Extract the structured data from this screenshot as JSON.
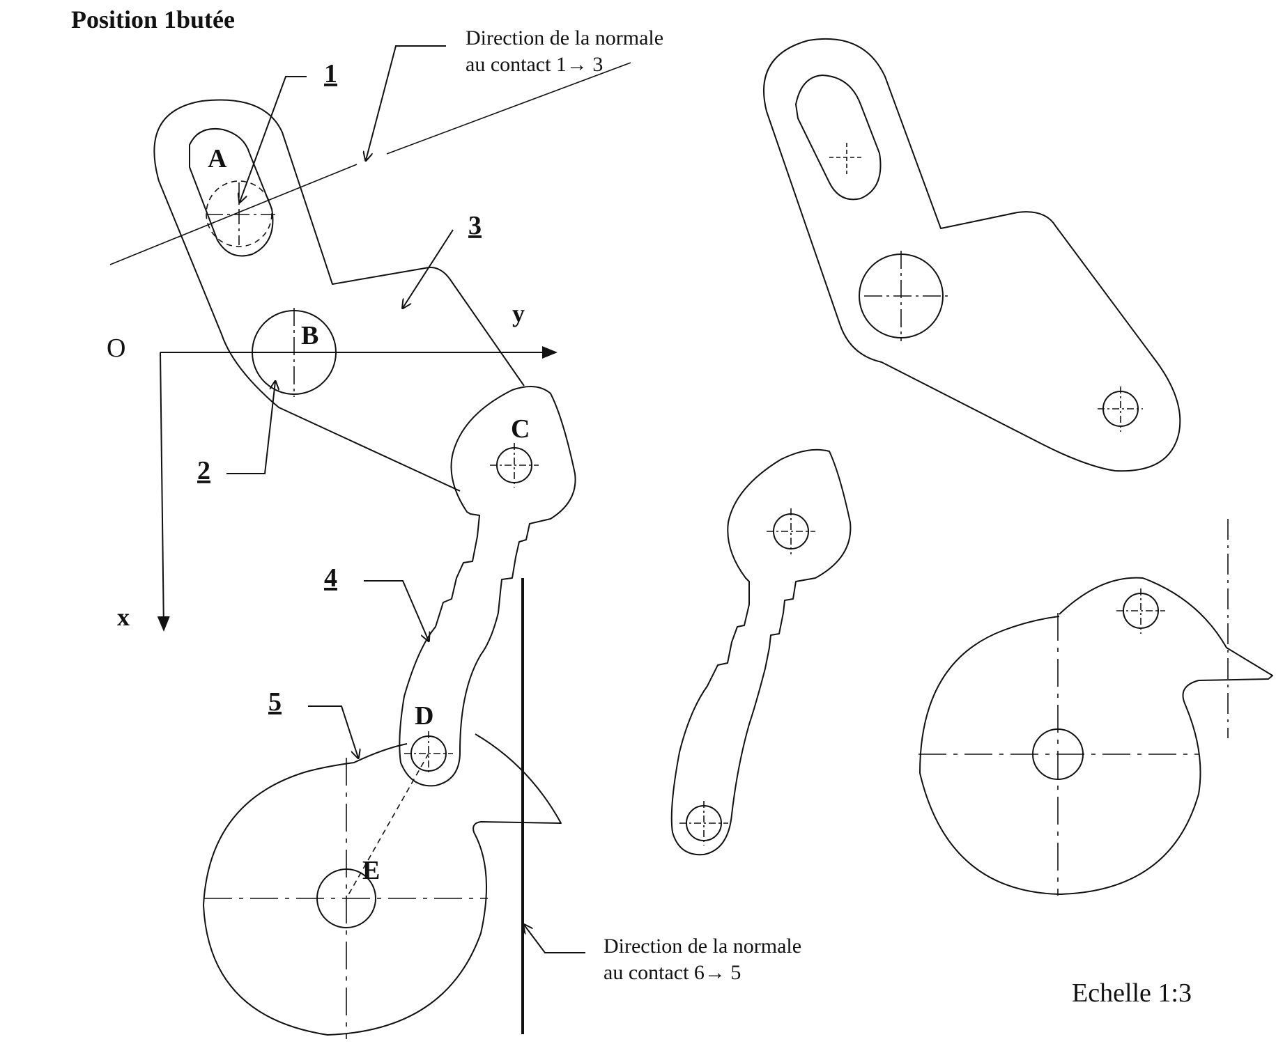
{
  "title": "Position 1butée",
  "note_normal_1_3": {
    "line1": "Direction de la normale",
    "line2": "au contact 1→ 3"
  },
  "note_normal_6_5": {
    "line1": "Direction de la normale",
    "line2": "au contact 6→ 5"
  },
  "scale": "Echelle 1:3",
  "axes": {
    "origin": "O",
    "x": "x",
    "y": "y"
  },
  "part_numbers": [
    "1",
    "2",
    "3",
    "4",
    "5"
  ],
  "points": [
    "A",
    "B",
    "C",
    "D",
    "E"
  ]
}
